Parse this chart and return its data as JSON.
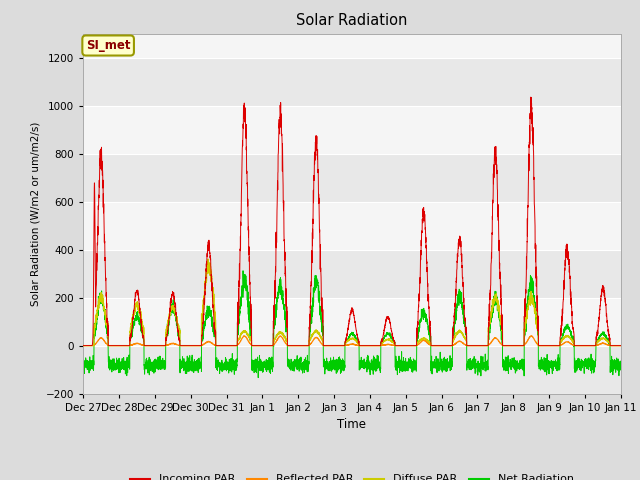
{
  "title": "Solar Radiation",
  "ylabel": "Solar Radiation (W/m2 or um/m2/s)",
  "xlabel": "Time",
  "ylim": [
    -200,
    1300
  ],
  "yticks": [
    -200,
    0,
    200,
    400,
    600,
    800,
    1000,
    1200
  ],
  "station_label": "SI_met",
  "day_labels": [
    "Dec 27",
    "Dec 28",
    "Dec 29",
    "Dec 30",
    "Dec 31",
    "Jan 1",
    "Jan 2",
    "Jan 3",
    "Jan 4",
    "Jan 5",
    "Jan 6",
    "Jan 7",
    "Jan 8",
    "Jan 9",
    "Jan 10",
    "Jan 11"
  ],
  "day_positions": [
    0,
    1,
    2,
    3,
    4,
    5,
    6,
    7,
    8,
    9,
    10,
    11,
    12,
    13,
    14,
    15
  ],
  "incoming_peaks": [
    800,
    230,
    220,
    420,
    990,
    970,
    850,
    150,
    120,
    550,
    450,
    800,
    1000,
    400,
    240
  ],
  "diffuse_peaks": [
    200,
    170,
    160,
    330,
    60,
    55,
    60,
    30,
    25,
    30,
    60,
    200,
    200,
    40,
    30
  ],
  "net_peaks": [
    200,
    120,
    160,
    150,
    270,
    250,
    270,
    50,
    50,
    140,
    210,
    200,
    260,
    80,
    50
  ],
  "legend_colors": [
    "#dd0000",
    "#ff8800",
    "#cccc00",
    "#00cc00"
  ]
}
